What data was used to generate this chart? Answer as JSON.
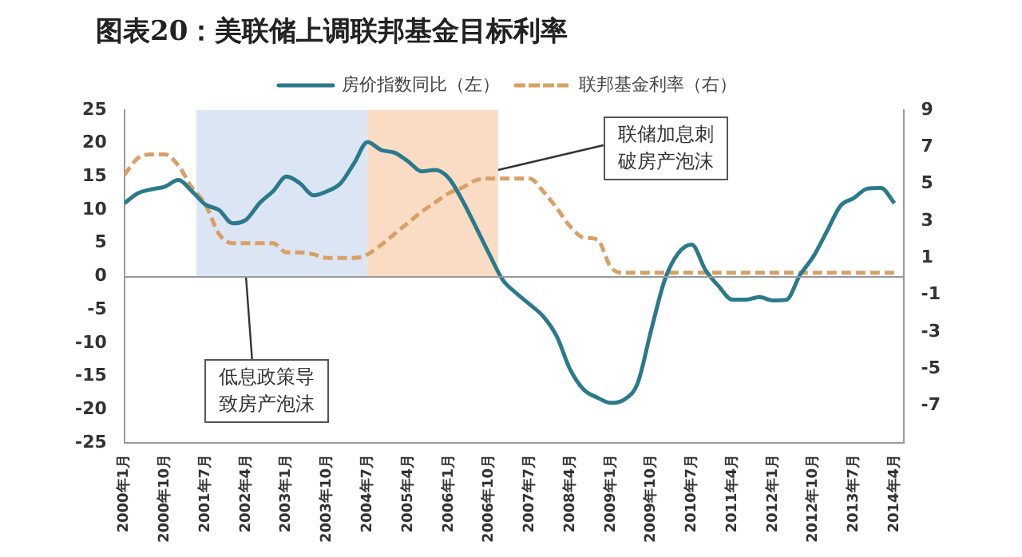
{
  "chart_data": {
    "type": "line",
    "title": "图表20：美联储上调联邦基金目标利率",
    "x": [
      "2000-01",
      "2000-04",
      "2000-07",
      "2000-10",
      "2001-01",
      "2001-04",
      "2001-07",
      "2001-10",
      "2002-01",
      "2002-04",
      "2002-07",
      "2002-10",
      "2003-01",
      "2003-04",
      "2003-07",
      "2003-10",
      "2004-01",
      "2004-04",
      "2004-07",
      "2004-10",
      "2005-01",
      "2005-04",
      "2005-07",
      "2005-10",
      "2006-01",
      "2006-04",
      "2006-07",
      "2006-10",
      "2007-01",
      "2007-04",
      "2007-07",
      "2007-10",
      "2008-01",
      "2008-04",
      "2008-07",
      "2008-10",
      "2009-01",
      "2009-04",
      "2009-07",
      "2009-10",
      "2010-01",
      "2010-04",
      "2010-07",
      "2010-10",
      "2011-01",
      "2011-04",
      "2011-07",
      "2011-10",
      "2012-01",
      "2012-04",
      "2012-07",
      "2012-10",
      "2013-01",
      "2013-04",
      "2013-07",
      "2013-10",
      "2014-01",
      "2014-04"
    ],
    "series": [
      {
        "name": "房价指数同比（左）",
        "color": "#2b7a8c",
        "line_style": "solid",
        "values": [
          11,
          12.5,
          13.1,
          13.5,
          14.5,
          12.8,
          10.8,
          10,
          8,
          8.5,
          11,
          12.8,
          15,
          14,
          12.2,
          12.8,
          14,
          17,
          20.2,
          19,
          18.6,
          17.3,
          15.8,
          16,
          14.8,
          11.5,
          7.5,
          3.4,
          -0.5,
          -2.5,
          -4.2,
          -6,
          -9,
          -14,
          -17,
          -18.2,
          -19,
          -18.5,
          -16,
          -8,
          -0.5,
          3.5,
          4.8,
          1,
          -1.5,
          -3.5,
          -3.5,
          -3.1,
          -3.6,
          -3.5,
          0.2,
          3,
          6.8,
          10.6,
          11.8,
          13.2,
          13.3,
          11
        ]
      },
      {
        "name": "联邦基金利率（右）",
        "color": "#d9a066",
        "line_style": "dashed",
        "axis": "y2",
        "values": [
          5.5,
          6.4,
          6.6,
          6.6,
          6,
          4.8,
          3.9,
          2.3,
          1.8,
          1.8,
          1.8,
          1.8,
          1.3,
          1.3,
          1.2,
          1,
          1,
          1,
          1.2,
          1.7,
          2.3,
          2.9,
          3.5,
          4,
          4.5,
          4.8,
          5.2,
          5.3,
          5.3,
          5.3,
          5.3,
          4.6,
          3.7,
          2.7,
          2.1,
          2,
          0.5,
          0.2,
          0.2,
          0.2,
          0.2,
          0.2,
          0.2,
          0.2,
          0.2,
          0.2,
          0.2,
          0.2,
          0.2,
          0.2,
          0.2,
          0.2,
          0.2,
          0.2,
          0.2,
          0.2,
          0.2,
          0.2
        ]
      }
    ],
    "xlim": [
      "2000-01",
      "2014-06"
    ],
    "xticks": [
      {
        "value": "2000-01",
        "label": "2000年1月"
      },
      {
        "value": "2000-10",
        "label": "2000年10月"
      },
      {
        "value": "2001-07",
        "label": "2001年7月"
      },
      {
        "value": "2002-04",
        "label": "2002年4月"
      },
      {
        "value": "2003-01",
        "label": "2003年1月"
      },
      {
        "value": "2003-10",
        "label": "2003年10月"
      },
      {
        "value": "2004-07",
        "label": "2004年7月"
      },
      {
        "value": "2005-04",
        "label": "2005年4月"
      },
      {
        "value": "2006-01",
        "label": "2006年1月"
      },
      {
        "value": "2006-10",
        "label": "2006年10月"
      },
      {
        "value": "2007-07",
        "label": "2007年7月"
      },
      {
        "value": "2008-04",
        "label": "2008年4月"
      },
      {
        "value": "2009-01",
        "label": "2009年1月"
      },
      {
        "value": "2009-10",
        "label": "2009年10月"
      },
      {
        "value": "2010-07",
        "label": "2010年7月"
      },
      {
        "value": "2011-04",
        "label": "2011年4月"
      },
      {
        "value": "2012-01",
        "label": "2012年1月"
      },
      {
        "value": "2012-10",
        "label": "2012年10月"
      },
      {
        "value": "2013-07",
        "label": "2013年7月"
      },
      {
        "value": "2014-04",
        "label": "2014年4月"
      }
    ],
    "ylim": [
      -25,
      25
    ],
    "yticks": [
      -25,
      -20,
      -15,
      -10,
      -5,
      0,
      5,
      10,
      15,
      20,
      25
    ],
    "y2lim": [
      -9,
      9
    ],
    "y2ticks": [
      -7,
      -5,
      -3,
      -1,
      1,
      3,
      5,
      7,
      9
    ],
    "bands": [
      {
        "axis": "x",
        "from": "2001-05",
        "to": "2004-07",
        "color": "#dbe5f3"
      },
      {
        "axis": "x",
        "from": "2004-07",
        "to": "2006-12",
        "color": "#fadcc4"
      }
    ],
    "annotations": [
      {
        "text": "低息政策导致房产泡沫",
        "x": "2002-04",
        "y": 0
      },
      {
        "text": "联储加息刺破房产泡沫",
        "x": "2006-12",
        "y": 16
      }
    ],
    "grid": false,
    "legend": "top",
    "marker": "none"
  }
}
